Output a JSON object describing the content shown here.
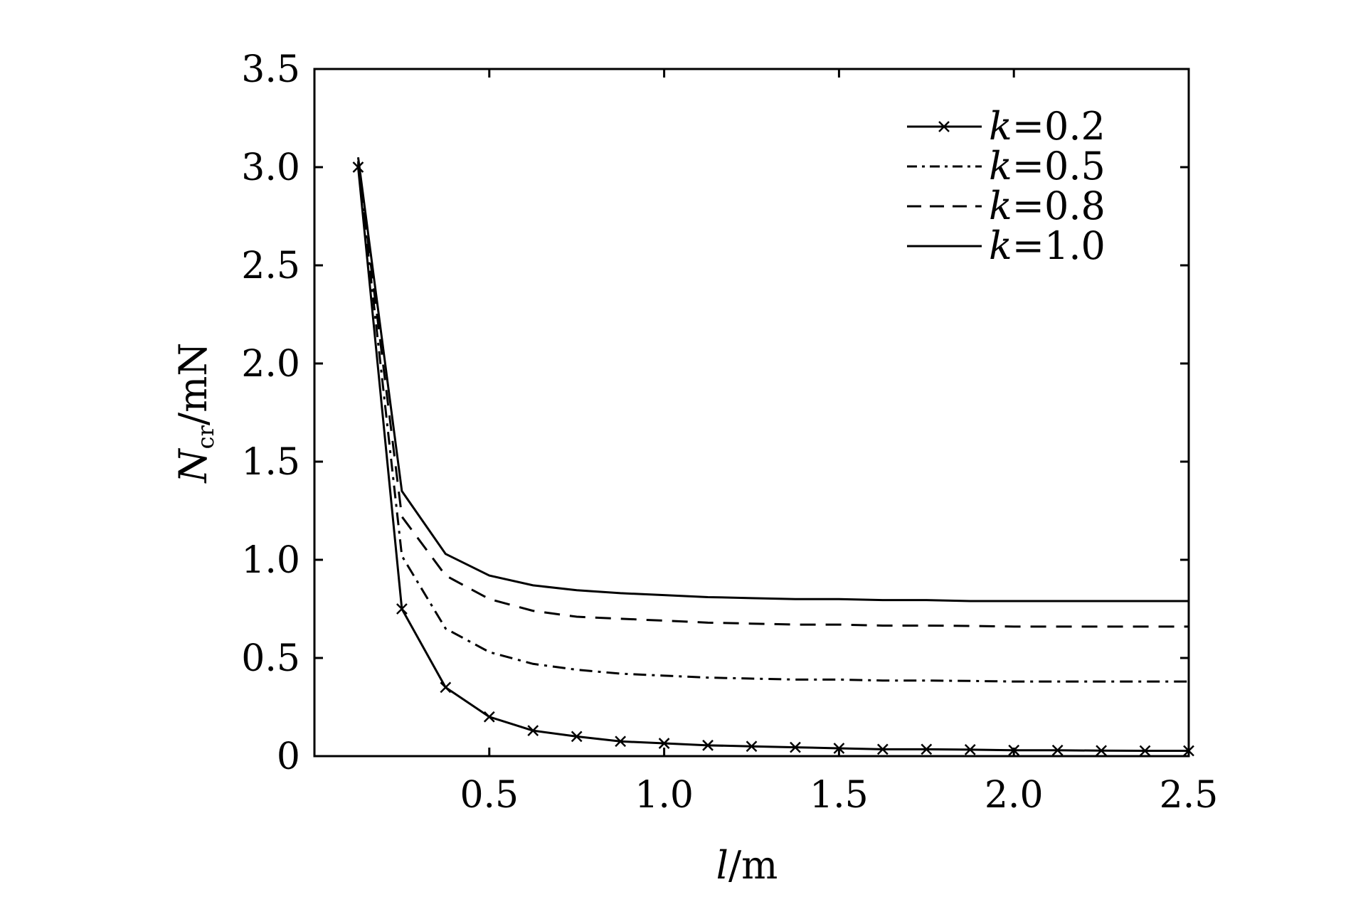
{
  "chart_data": {
    "type": "line",
    "title": "",
    "xlabel": {
      "main": "l",
      "unit": "/m"
    },
    "ylabel": {
      "main": "N",
      "sub": "cr",
      "unit": "/mN"
    },
    "xlim": [
      0,
      2.5
    ],
    "ylim": [
      0,
      3.5
    ],
    "xticks": [
      0.5,
      1.0,
      1.5,
      2.0,
      2.5
    ],
    "xtick_labels": [
      "0.5",
      "1.0",
      "1.5",
      "2.0",
      "2.5"
    ],
    "yticks": [
      0,
      0.5,
      1.0,
      1.5,
      2.0,
      2.5,
      3.0,
      3.5
    ],
    "ytick_labels": [
      "0",
      "0.5",
      "1.0",
      "1.5",
      "2.0",
      "2.5",
      "3.0",
      "3.5"
    ],
    "grid": false,
    "legend_position": "top-right",
    "x": [
      0.125,
      0.25,
      0.375,
      0.5,
      0.625,
      0.75,
      0.875,
      1.0,
      1.125,
      1.25,
      1.375,
      1.5,
      1.625,
      1.75,
      1.875,
      2.0,
      2.125,
      2.25,
      2.375,
      2.5
    ],
    "series": [
      {
        "name": "k=0.2",
        "k_label": "k",
        "value_label": "=0.2",
        "style": "solid-x",
        "values": [
          3.0,
          0.75,
          0.35,
          0.2,
          0.13,
          0.1,
          0.075,
          0.065,
          0.055,
          0.05,
          0.045,
          0.04,
          0.035,
          0.035,
          0.033,
          0.03,
          0.03,
          0.028,
          0.027,
          0.027
        ]
      },
      {
        "name": "k=0.5",
        "k_label": "k",
        "value_label": "=0.5",
        "style": "dashdot",
        "values": [
          3.02,
          1.02,
          0.65,
          0.53,
          0.47,
          0.44,
          0.42,
          0.41,
          0.4,
          0.395,
          0.39,
          0.39,
          0.385,
          0.385,
          0.383,
          0.38,
          0.38,
          0.38,
          0.38,
          0.38
        ]
      },
      {
        "name": "k=0.8",
        "k_label": "k",
        "value_label": "=0.8",
        "style": "dashed",
        "values": [
          3.03,
          1.22,
          0.92,
          0.8,
          0.74,
          0.71,
          0.7,
          0.69,
          0.68,
          0.675,
          0.67,
          0.67,
          0.665,
          0.665,
          0.663,
          0.66,
          0.66,
          0.66,
          0.66,
          0.66
        ]
      },
      {
        "name": "k=1.0",
        "k_label": "k",
        "value_label": "=1.0",
        "style": "solid",
        "values": [
          3.05,
          1.35,
          1.03,
          0.92,
          0.87,
          0.845,
          0.83,
          0.82,
          0.81,
          0.805,
          0.8,
          0.8,
          0.795,
          0.795,
          0.79,
          0.79,
          0.79,
          0.79,
          0.79,
          0.79
        ]
      }
    ]
  }
}
